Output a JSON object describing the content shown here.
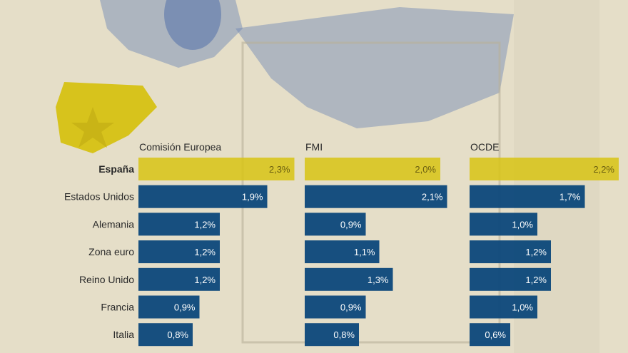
{
  "chart_data": {
    "type": "bar",
    "orientation": "horizontal",
    "categories": [
      "España",
      "Estados Unidos",
      "Alemania",
      "Zona euro",
      "Reino Unido",
      "Francia",
      "Italia"
    ],
    "highlight_category": "España",
    "series": [
      {
        "name": "Comisión Europea",
        "values": [
          2.3,
          1.9,
          1.2,
          1.2,
          1.2,
          0.9,
          0.8
        ]
      },
      {
        "name": "FMI",
        "values": [
          2.0,
          2.1,
          0.9,
          1.1,
          1.3,
          0.9,
          0.8
        ]
      },
      {
        "name": "OCDE",
        "values": [
          2.2,
          1.7,
          1.0,
          1.2,
          1.2,
          1.0,
          0.6
        ]
      }
    ],
    "value_suffix": "%",
    "decimal_separator": ",",
    "colors": {
      "highlight": "#d8c414",
      "default": "#0f4a7c",
      "highlight_text": "#6b5f10",
      "default_text": "#ffffff"
    },
    "grid": false,
    "legend": "none"
  }
}
